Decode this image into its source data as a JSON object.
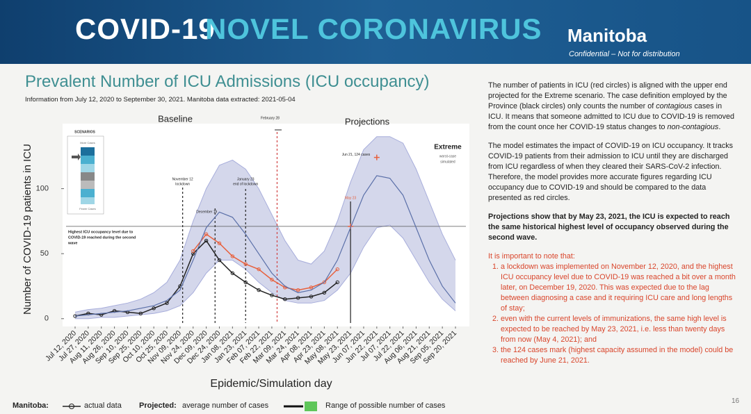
{
  "header": {
    "title_part1": "COVID-19",
    "title_part2": "NOVEL CORONAVIRUS",
    "logo": "Manitoba",
    "note": "Confidential – Not for distribution"
  },
  "chart_data": {
    "type": "line",
    "title": "Prevalent Number of ICU Admissions (ICU occupancy)",
    "subtitle": "Information from July 12, 2020 to September 30, 2021. Manitoba data extracted: 2021-05-04",
    "x_label": "Epidemic/Simulation day",
    "y_label": "Number of COVID-19 patients in ICU",
    "categories": [
      "Jul 12, 2020",
      "Jul 27, 2020",
      "Aug 11, 2020",
      "Aug 26, 2020",
      "Sep 10, 2020",
      "Sep 25, 2020",
      "Oct 10, 2020",
      "Oct 25, 2020",
      "Nov 09, 2020",
      "Nov 24, 2020",
      "Dec 09, 2020",
      "Dec 24, 2020",
      "Jan 08, 2021",
      "Jan 23, 2021",
      "Feb 07, 2021",
      "Feb 22, 2021",
      "Mar 09, 2021",
      "Mar 24, 2021",
      "Apr 08, 2021",
      "Apr 23, 2021",
      "May 08, 2021",
      "May 23, 2021",
      "Jun 07, 2021",
      "Jun 22, 2021",
      "Jul 07, 2021",
      "Jul 22, 2021",
      "Aug 06, 2021",
      "Aug 21, 2021",
      "Sep 05, 2021",
      "Sep 20, 2021"
    ],
    "ylim": [
      -6,
      150
    ],
    "yticks": [
      0,
      50,
      100
    ],
    "series": [
      {
        "name": "actual data",
        "color": "#222222",
        "values": [
          2,
          4,
          3,
          6,
          5,
          4,
          8,
          12,
          25,
          50,
          60,
          45,
          35,
          28,
          22,
          18,
          15,
          16,
          17,
          20,
          28,
          null,
          null,
          null,
          null,
          null,
          null,
          null,
          null,
          null
        ]
      },
      {
        "color": "#e8603c",
        "values": [
          null,
          null,
          null,
          null,
          null,
          null,
          null,
          null,
          null,
          52,
          65,
          58,
          48,
          42,
          38,
          30,
          24,
          22,
          24,
          28,
          38,
          null,
          null,
          null,
          null,
          null,
          null,
          null,
          null,
          null
        ]
      },
      {
        "name": "average number of cases",
        "color": "#5a6fa8",
        "values": [
          2,
          3,
          4,
          5,
          6,
          8,
          10,
          14,
          22,
          45,
          70,
          82,
          78,
          65,
          50,
          35,
          25,
          20,
          22,
          28,
          45,
          70,
          95,
          110,
          108,
          95,
          70,
          45,
          25,
          12
        ]
      }
    ],
    "band": {
      "name": "Range of possible number of cases",
      "color": "#c9cde6",
      "upper": [
        5,
        7,
        8,
        10,
        12,
        15,
        20,
        28,
        45,
        75,
        100,
        118,
        122,
        115,
        100,
        80,
        60,
        45,
        42,
        52,
        75,
        105,
        130,
        140,
        140,
        135,
        115,
        90,
        65,
        45
      ],
      "lower": [
        0,
        0,
        1,
        1,
        2,
        3,
        4,
        6,
        10,
        20,
        35,
        45,
        45,
        38,
        28,
        20,
        14,
        12,
        12,
        14,
        22,
        35,
        55,
        70,
        72,
        62,
        45,
        28,
        15,
        6
      ]
    },
    "highest_level": {
      "label": [
        "Highest ICU occupancy level due to",
        "COVID-19 reached during the second",
        "wave"
      ],
      "value": 71
    },
    "peak": {
      "label": "Jun 21, 124 cases",
      "value": 124
    },
    "may_marker": {
      "label": "May 23",
      "value": 71
    },
    "annotations": {
      "baseline": "Baseline",
      "projections": "Projections",
      "february": "February 28",
      "extreme": "Extreme",
      "extreme_note": [
        "worst-case",
        "simulated"
      ],
      "november": [
        "November 12",
        "lockdown"
      ],
      "january": [
        "January 23",
        "end of lockdown"
      ],
      "december": "December 19"
    },
    "scenarios": {
      "title": "SCENARIOS",
      "top": "More Cases",
      "bottom": "Fewer Cases"
    },
    "legend_groups": [
      "Manitoba:",
      "Projected:"
    ]
  },
  "commentary": {
    "p1": [
      "The number of patients in ICU (red circles) is aligned with the upper end projected for the Extreme scenario. The case definition employed by the Province (black circles) only counts the number of ",
      "contagious",
      " cases in ICU. It means that someone admitted to ICU due to COVID-19 is removed from the count once her COVID-19 status changes to ",
      "non-contagious",
      "."
    ],
    "p2": "The model estimates the impact of COVID-19 on ICU occupancy. It tracks COVID-19 patients from their admission to ICU until they are discharged from ICU regardless of when they cleared their SARS-CoV-2 infection. Therefore, the model provides more accurate figures regarding ICU occupancy due to COVID-19 and should be compared to the data presented as red circles.",
    "p3": "Projections show that by May 23, 2021, the ICU is expected to reach the same historical highest level of occupancy observed during the second wave.",
    "note_intro": "It is important to note that:",
    "notes": [
      "a lockdown was implemented on November 12, 2020, and the highest ICU occupancy level due to COVID-19 was reached a bit over a month later, on December 19, 2020. This was expected due to the lag between diagnosing a case and it requiring ICU care and long lengths of stay;",
      "even with the current levels of immunizations, the same high level is expected to be reached by May 23, 2021, i.e. less than twenty days from now (May 4, 2021); and",
      "the 124 cases mark (highest capacity assumed in the model) could be reached by June 21, 2021."
    ]
  },
  "page_number": "16"
}
